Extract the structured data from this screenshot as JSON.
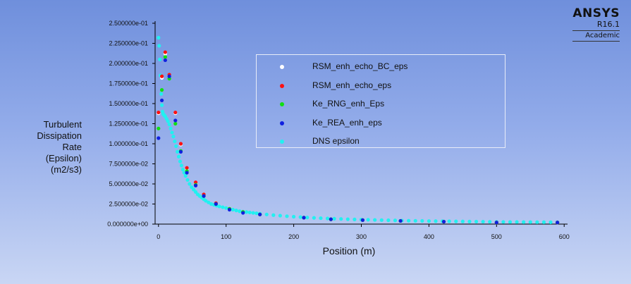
{
  "branding": {
    "name": "ANSYS",
    "version": "R16.1",
    "edition": "Academic"
  },
  "chart_data": {
    "type": "scatter",
    "xlabel": "Position (m)",
    "ylabel": [
      "Turbulent",
      "Dissipation",
      "Rate",
      "(Epsilon)",
      "(m2/s3)"
    ],
    "xlim": [
      -5,
      605
    ],
    "ylim": [
      0,
      0.25
    ],
    "x_ticks": [
      0,
      100,
      200,
      300,
      400,
      500,
      600
    ],
    "x_tick_labels": [
      "0",
      "100",
      "200",
      "300",
      "400",
      "500",
      "600"
    ],
    "y_ticks": [
      0,
      0.025,
      0.05,
      0.075,
      0.1,
      0.125,
      0.15,
      0.175,
      0.2,
      0.225,
      0.25
    ],
    "y_tick_labels": [
      "0.000000e+00",
      "2.500000e-02",
      "5.000000e-02",
      "7.500000e-02",
      "1.000000e-01",
      "1.250000e-01",
      "1.500000e-01",
      "1.750000e-01",
      "2.000000e-01",
      "2.250000e-01",
      "2.500000e-01"
    ],
    "legend_position": "top-right",
    "series": [
      {
        "name": "RSM_enh_echo_BC_eps",
        "color": "#ffffff",
        "x": [
          0,
          5,
          10,
          16,
          25,
          33,
          42,
          55,
          67,
          85,
          105,
          125,
          150,
          215,
          255,
          302,
          358,
          422,
          500,
          590
        ],
        "y": [
          0.138,
          0.182,
          0.212,
          0.185,
          0.138,
          0.099,
          0.069,
          0.051,
          0.036,
          0.025,
          0.019,
          0.015,
          0.012,
          0.008,
          0.006,
          0.005,
          0.004,
          0.003,
          0.002,
          0.002
        ]
      },
      {
        "name": "RSM_enh_echo_eps",
        "color": "#ff1010",
        "x": [
          0,
          5,
          10,
          16,
          25,
          33,
          42,
          55,
          67,
          85,
          105,
          125,
          150,
          215,
          255,
          302,
          358,
          422,
          500,
          590
        ],
        "y": [
          0.139,
          0.184,
          0.214,
          0.186,
          0.139,
          0.1,
          0.07,
          0.052,
          0.037,
          0.026,
          0.019,
          0.015,
          0.012,
          0.008,
          0.006,
          0.005,
          0.004,
          0.003,
          0.002,
          0.002
        ]
      },
      {
        "name": "Ke_RNG_enh_Eps",
        "color": "#10e010",
        "x": [
          0,
          5,
          10,
          16,
          25,
          33,
          42,
          55,
          67,
          85,
          105,
          125,
          150,
          215,
          255,
          302,
          358,
          422,
          500,
          590
        ],
        "y": [
          0.119,
          0.167,
          0.208,
          0.181,
          0.125,
          0.091,
          0.066,
          0.049,
          0.035,
          0.025,
          0.019,
          0.015,
          0.012,
          0.008,
          0.006,
          0.005,
          0.004,
          0.003,
          0.002,
          0.002
        ]
      },
      {
        "name": "Ke_REA_enh_eps",
        "color": "#1020e0",
        "x": [
          0,
          5,
          10,
          16,
          25,
          33,
          42,
          55,
          67,
          85,
          105,
          125,
          150,
          215,
          255,
          302,
          358,
          422,
          500,
          590
        ],
        "y": [
          0.107,
          0.154,
          0.204,
          0.184,
          0.129,
          0.09,
          0.064,
          0.048,
          0.035,
          0.025,
          0.018,
          0.014,
          0.012,
          0.008,
          0.006,
          0.005,
          0.004,
          0.003,
          0.002,
          0.002
        ]
      },
      {
        "name": "DNS epsilon",
        "color": "#22f0f0",
        "x": [
          0,
          1,
          2,
          3,
          4,
          5,
          6,
          7,
          8,
          9,
          10,
          12,
          14,
          16,
          18,
          20,
          22,
          24,
          26,
          28,
          30,
          32,
          34,
          36,
          38,
          40,
          43,
          46,
          49,
          52,
          55,
          58,
          61,
          64,
          67,
          70,
          74,
          78,
          82,
          86,
          90,
          95,
          100,
          105,
          110,
          115,
          120,
          125,
          130,
          135,
          140,
          145,
          150,
          160,
          170,
          180,
          190,
          200,
          210,
          220,
          230,
          240,
          250,
          260,
          270,
          280,
          290,
          300,
          310,
          320,
          330,
          340,
          350,
          360,
          370,
          380,
          390,
          400,
          410,
          420,
          430,
          440,
          450,
          460,
          470,
          480,
          490,
          500,
          510,
          520,
          530,
          540,
          550,
          560,
          570,
          580,
          590
        ],
        "y": [
          0.232,
          0.222,
          0.205,
          0.185,
          0.162,
          0.148,
          0.14,
          0.137,
          0.136,
          0.135,
          0.134,
          0.131,
          0.128,
          0.124,
          0.119,
          0.114,
          0.109,
          0.103,
          0.097,
          0.09,
          0.084,
          0.078,
          0.073,
          0.068,
          0.064,
          0.06,
          0.055,
          0.05,
          0.046,
          0.043,
          0.04,
          0.037,
          0.035,
          0.033,
          0.031,
          0.029,
          0.027,
          0.025,
          0.024,
          0.023,
          0.022,
          0.021,
          0.02,
          0.019,
          0.018,
          0.017,
          0.016,
          0.0155,
          0.015,
          0.0145,
          0.014,
          0.0135,
          0.013,
          0.012,
          0.0112,
          0.0105,
          0.0098,
          0.0092,
          0.0087,
          0.0082,
          0.0078,
          0.0074,
          0.007,
          0.0067,
          0.0064,
          0.0061,
          0.0058,
          0.0056,
          0.0054,
          0.0052,
          0.005,
          0.0048,
          0.0046,
          0.0044,
          0.0042,
          0.0041,
          0.004,
          0.0038,
          0.0037,
          0.0036,
          0.0035,
          0.0034,
          0.0033,
          0.0032,
          0.0031,
          0.003,
          0.0029,
          0.0028,
          0.0027,
          0.0026,
          0.0026,
          0.0025,
          0.0025,
          0.0024,
          0.0024,
          0.0023,
          0.0023
        ]
      }
    ]
  }
}
